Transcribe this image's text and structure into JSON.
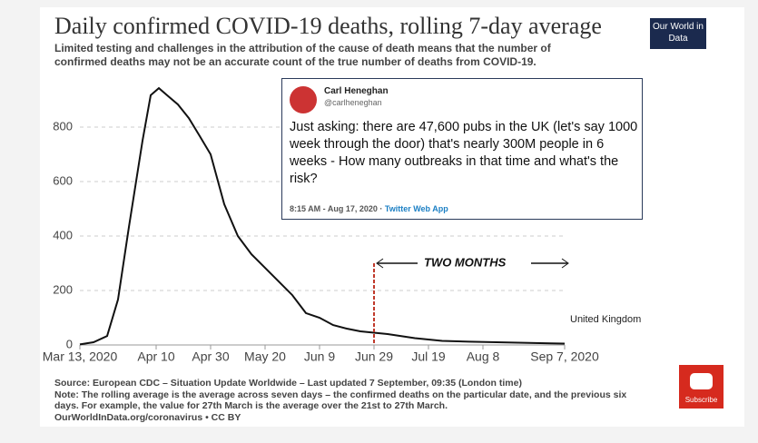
{
  "chart_data": {
    "type": "line",
    "title": "Daily confirmed COVID-19 deaths, rolling 7-day average",
    "subtitle": "Limited testing and challenges in the attribution of the cause of death means that the number of confirmed deaths may not be an accurate count of the true number of deaths from COVID-19.",
    "x": [
      "2020-03-13",
      "2020-03-18",
      "2020-03-23",
      "2020-03-27",
      "2020-03-31",
      "2020-04-05",
      "2020-04-08",
      "2020-04-11",
      "2020-04-14",
      "2020-04-18",
      "2020-04-22",
      "2020-04-26",
      "2020-04-30",
      "2020-05-05",
      "2020-05-10",
      "2020-05-15",
      "2020-05-20",
      "2020-05-25",
      "2020-05-30",
      "2020-06-04",
      "2020-06-09",
      "2020-06-14",
      "2020-06-19",
      "2020-06-24",
      "2020-06-29",
      "2020-07-04",
      "2020-07-14",
      "2020-07-24",
      "2020-08-03",
      "2020-08-13",
      "2020-08-23",
      "2020-09-02",
      "2020-09-07"
    ],
    "series": [
      {
        "name": "United Kingdom",
        "color": "#111111",
        "values": [
          2,
          10,
          33,
          167,
          433,
          750,
          917,
          943,
          917,
          883,
          833,
          767,
          700,
          517,
          400,
          333,
          283,
          233,
          183,
          117,
          100,
          73,
          60,
          50,
          45,
          40,
          25,
          15,
          12,
          10,
          8,
          6,
          5
        ]
      }
    ],
    "xlim": [
      "2020-03-13",
      "2020-09-07"
    ],
    "xticks": [
      {
        "value": "2020-03-13",
        "label": "Mar 13, 2020"
      },
      {
        "value": "2020-04-10",
        "label": "Apr 10"
      },
      {
        "value": "2020-04-30",
        "label": "Apr 30"
      },
      {
        "value": "2020-05-20",
        "label": "May 20"
      },
      {
        "value": "2020-06-09",
        "label": "Jun 9"
      },
      {
        "value": "2020-06-29",
        "label": "Jun 29"
      },
      {
        "value": "2020-07-19",
        "label": "Jul 19"
      },
      {
        "value": "2020-08-08",
        "label": "Aug 8"
      },
      {
        "value": "2020-09-07",
        "label": "Sep 7, 2020"
      }
    ],
    "ylim": [
      0,
      1000
    ],
    "yticks": [
      0,
      200,
      400,
      600,
      800
    ],
    "grid": true,
    "vline": {
      "x": "2020-06-29",
      "color": "#c0392b"
    },
    "annotation": "TWO MONTHS",
    "source": "Source: European CDC – Situation Update Worldwide – Last updated 7 September, 09:35 (London time)",
    "note": "Note: The rolling average is the average across seven days – the confirmed deaths on the particular date, and the previous six days. For example, the value for 27th March is the average over the 21st to 27th March.",
    "credit": "OurWorldInData.org/coronavirus • CC BY",
    "logo": "Our World in Data"
  },
  "tweet": {
    "name": "Carl Heneghan",
    "handle": "@carlheneghan",
    "text": "Just asking: there are 47,600 pubs in the UK (let's say 1000 week through the door) that's nearly 300M people in 6 weeks - How many outbreaks in that time and what's the risk?",
    "time": "8:15 AM - Aug 17, 2020 ·",
    "via": "Twitter Web App"
  },
  "button": "Subscribe"
}
